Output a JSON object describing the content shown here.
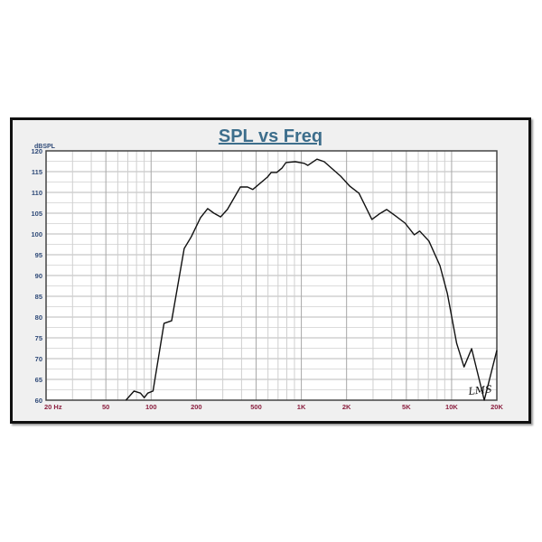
{
  "chart_data": {
    "type": "line",
    "title": "SPL vs Freq",
    "ylabel": "dBSPL",
    "xlabel": "",
    "x_scale": "log",
    "xlim": [
      20,
      20000
    ],
    "ylim": [
      60,
      120
    ],
    "grid": true,
    "x_tick_labels": [
      {
        "value": 20,
        "label": "20  Hz"
      },
      {
        "value": 50,
        "label": "50"
      },
      {
        "value": 100,
        "label": "100"
      },
      {
        "value": 200,
        "label": "200"
      },
      {
        "value": 500,
        "label": "500"
      },
      {
        "value": 1000,
        "label": "1K"
      },
      {
        "value": 2000,
        "label": "2K"
      },
      {
        "value": 5000,
        "label": "5K"
      },
      {
        "value": 10000,
        "label": "10K"
      },
      {
        "value": 20000,
        "label": "20K"
      }
    ],
    "y_ticks": [
      60,
      65,
      70,
      75,
      80,
      85,
      90,
      95,
      100,
      105,
      110,
      115,
      120
    ],
    "series": [
      {
        "color": "#111111",
        "x": [
          68,
          77,
          85,
          90,
          95,
          103,
          122,
          137,
          166,
          185,
          213,
          238,
          262,
          290,
          322,
          393,
          438,
          475,
          595,
          630,
          685,
          745,
          790,
          910,
          1045,
          1105,
          1270,
          1420,
          1830,
          2100,
          2420,
          2950,
          3300,
          3700,
          4250,
          4900,
          5640,
          6130,
          7060,
          8360,
          9360,
          10800,
          12100,
          13600,
          16500,
          20000
        ],
        "y": [
          60,
          62.2,
          61.7,
          60.6,
          61.7,
          62.2,
          78.5,
          79.1,
          96.5,
          99.3,
          103.9,
          106.1,
          105,
          104.1,
          105.9,
          111.3,
          111.3,
          110.7,
          113.7,
          114.8,
          114.8,
          115.9,
          117.2,
          117.4,
          117,
          116.5,
          118,
          117.4,
          113.9,
          111.5,
          109.8,
          103.5,
          104.8,
          105.9,
          104.3,
          102.6,
          99.8,
          100.7,
          98.3,
          92.4,
          85.7,
          73.7,
          68,
          72.4,
          60,
          72
        ]
      }
    ],
    "logo_text": "LMS",
    "colors": {
      "title": "#3d6e8c",
      "y_ticks": "#2f4a78",
      "x_ticks": "#8b1f3f",
      "curve": "#111111"
    }
  }
}
